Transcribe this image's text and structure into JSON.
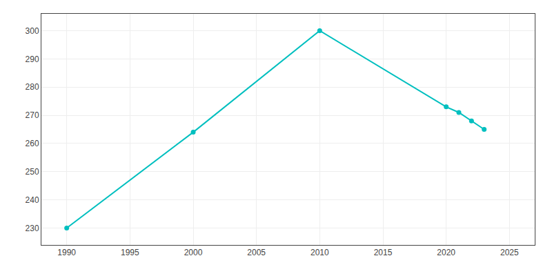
{
  "chart_data": {
    "type": "line",
    "x": [
      1990,
      2000,
      2010,
      2020,
      2021,
      2022,
      2023
    ],
    "values": [
      230,
      264,
      300,
      273,
      271,
      268,
      265
    ],
    "color": "#00BFBF",
    "marker": "circle",
    "xlim": [
      1988,
      2027
    ],
    "ylim": [
      224,
      306
    ],
    "xticks": [
      1990,
      1995,
      2000,
      2005,
      2010,
      2015,
      2020,
      2025
    ],
    "yticks": [
      230,
      240,
      250,
      260,
      270,
      280,
      290,
      300
    ],
    "grid": true
  }
}
